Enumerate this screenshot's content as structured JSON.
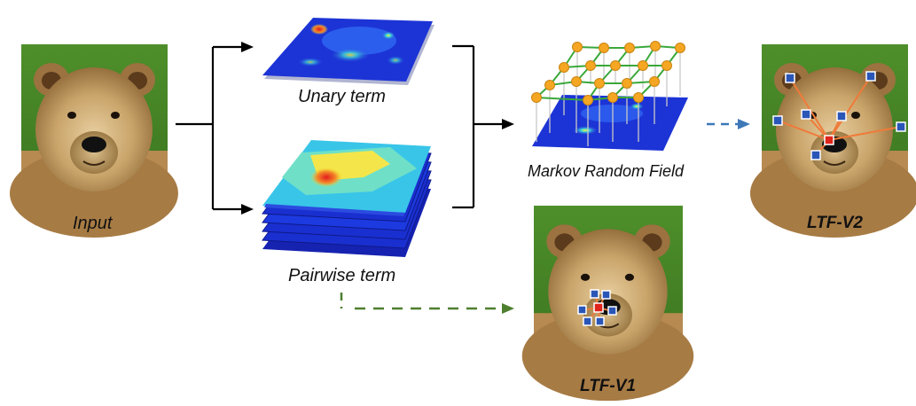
{
  "labels": {
    "input": "Input",
    "unary": "Unary term",
    "pairwise": "Pairwise term",
    "mrf": "Markov Random Field",
    "ltf_v1": "LTF-V1",
    "ltf_v2": "LTF-V2"
  },
  "icons": {
    "input_image": "bear-photo-icon",
    "ltf_v1_image": "bear-photo-with-keypoints-icon",
    "ltf_v2_image": "bear-photo-with-keypoints-icon",
    "unary_map": "heatmap-plane-icon",
    "pairwise_maps": "heatmap-stack-icon",
    "mrf_graph": "grid-graph-icon"
  },
  "colors": {
    "arrow_black": "#000000",
    "arrow_blue_dashed": "#3d78b8",
    "arrow_green_dashed": "#4d7f2f",
    "heatmap_base": "#1a2fcf",
    "graph_node": "#f5a623",
    "graph_edge": "#3aa83a",
    "keypoint_blue": "#2a56b8",
    "keypoint_red": "#e0241b",
    "keypoint_link": "#f07a3a"
  }
}
